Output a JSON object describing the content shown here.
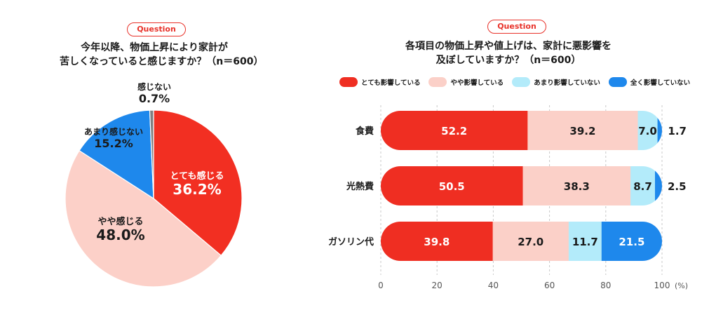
{
  "left_panel": {
    "badge": "Question",
    "title_lines": [
      "今年以降、物価上昇により家計が",
      "苦しくなっていると感じますか？（n＝600）"
    ]
  },
  "right_panel": {
    "badge": "Question",
    "title_lines": [
      "各項目の物価上昇や値上げは、家計に悪影響を",
      "及ぼしていますか？（n＝600）"
    ],
    "unit_label": "(%)"
  },
  "colors": {
    "accent_red": "#e8322a",
    "pie_red": "#f22f22",
    "pie_pink": "#fcd0c8",
    "pie_blue": "#1e88ec",
    "pie_gray": "#808080",
    "bar_red": "#ef2e22",
    "bar_pink": "#fbd0c8",
    "bar_lightblue": "#b3ebfa",
    "bar_blue": "#1e88ec"
  },
  "chart_data": [
    {
      "type": "pie",
      "title": "今年以降、物価上昇により家計が苦しくなっていると感じますか？（n＝600）",
      "start": "12 o'clock, clockwise",
      "slices": [
        {
          "label": "とても感じる",
          "value": 36.2,
          "display": "36.2%",
          "color_key": "pie_red"
        },
        {
          "label": "やや感じる",
          "value": 48.0,
          "display": "48.0%",
          "color_key": "pie_pink"
        },
        {
          "label": "あまり感じない",
          "value": 15.2,
          "display": "15.2%",
          "color_key": "pie_blue"
        },
        {
          "label": "感じない",
          "value": 0.7,
          "display": "0.7%",
          "color_key": "pie_gray"
        }
      ]
    },
    {
      "type": "bar",
      "orientation": "horizontal",
      "stacked": true,
      "title": "各項目の物価上昇や値上げは、家計に悪影響を及ぼしていますか？（n＝600）",
      "categories": [
        "食費",
        "光熱費",
        "ガソリン代"
      ],
      "series": [
        {
          "name": "とても影響している",
          "color_key": "bar_red",
          "values": [
            52.2,
            50.5,
            39.8
          ],
          "display": [
            "52.2",
            "50.5",
            "39.8"
          ]
        },
        {
          "name": "やや影響している",
          "color_key": "bar_pink",
          "values": [
            39.2,
            38.3,
            27.0
          ],
          "display": [
            "39.2",
            "38.3",
            "27.0"
          ]
        },
        {
          "name": "あまり影響していない",
          "color_key": "bar_lightblue",
          "values": [
            7.0,
            8.7,
            11.7
          ],
          "display": [
            "7.0",
            "8.7",
            "11.7"
          ]
        },
        {
          "name": "全く影響していない",
          "color_key": "bar_blue",
          "values": [
            1.7,
            2.5,
            21.5
          ],
          "display": [
            "1.7",
            "2.5",
            "21.5"
          ]
        }
      ],
      "xlim": [
        0,
        100
      ],
      "xticks": [
        "0",
        "20",
        "40",
        "60",
        "80",
        "100"
      ],
      "xlabel": "(%)",
      "grid": "vertical dashed"
    }
  ]
}
